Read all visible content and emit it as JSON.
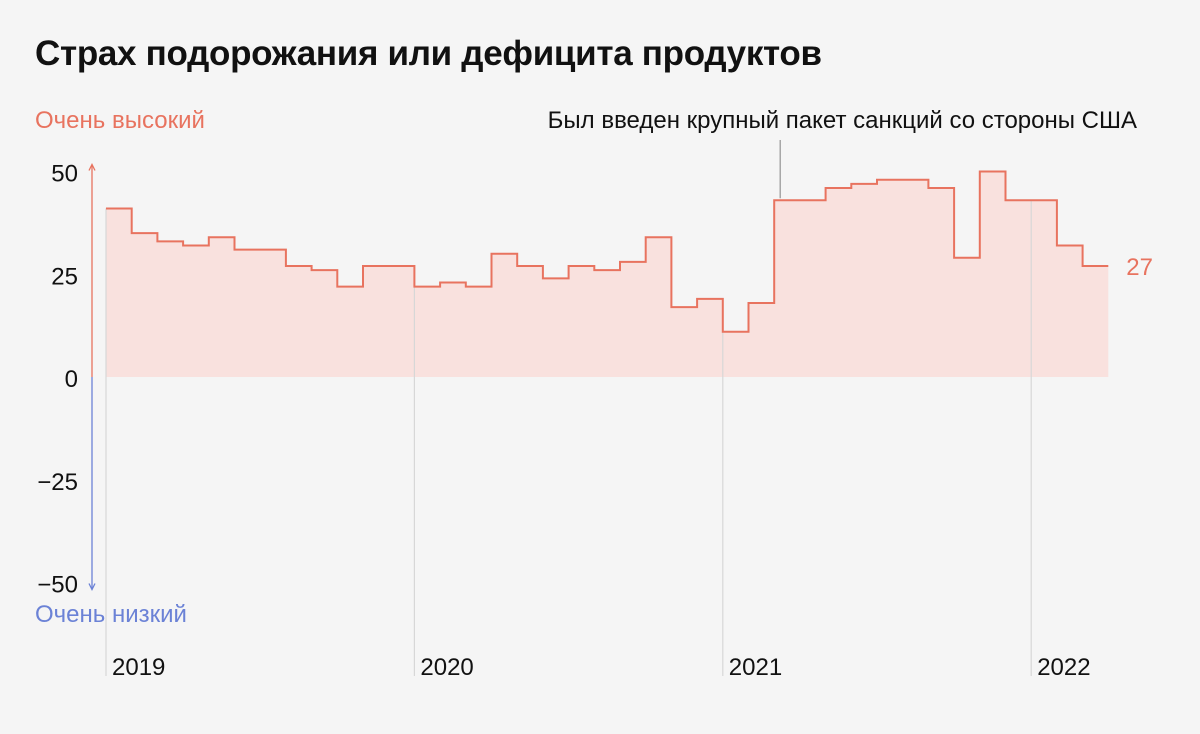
{
  "title": "Страх подорожания или дефицита продуктов",
  "chart_data": {
    "type": "line",
    "step": true,
    "title": "Страх подорожания или дефицита продуктов",
    "ylabel_top": "Очень высокий",
    "ylabel_bottom": "Очень низкий",
    "ylim": [
      -50,
      50
    ],
    "yticks": [
      50,
      25,
      0,
      -25,
      -50
    ],
    "ytick_labels": [
      "50",
      "25",
      "0",
      "−25",
      "−50"
    ],
    "x_labels": [
      "2019",
      "2020",
      "2021",
      "2022"
    ],
    "x_label_month_index": [
      0,
      12,
      24,
      36
    ],
    "month_count": 39,
    "values": [
      41,
      35,
      33,
      32,
      34,
      31,
      31,
      27,
      26,
      22,
      27,
      27,
      22,
      23,
      22,
      30,
      27,
      24,
      27,
      26,
      28,
      34,
      17,
      19,
      11,
      18,
      43,
      43,
      46,
      47,
      48,
      48,
      46,
      29,
      50,
      43,
      43,
      32,
      27
    ],
    "last_value_label": "27",
    "annotation": {
      "text": "Был введен крупный пакет санкций со стороны США",
      "month_index": 26
    },
    "grid": false,
    "colors": {
      "line": "#e8735f",
      "fill": "#f9e1de",
      "high": "#e8735f",
      "low": "#6b82d6",
      "vline": "#d7d7d7"
    }
  }
}
